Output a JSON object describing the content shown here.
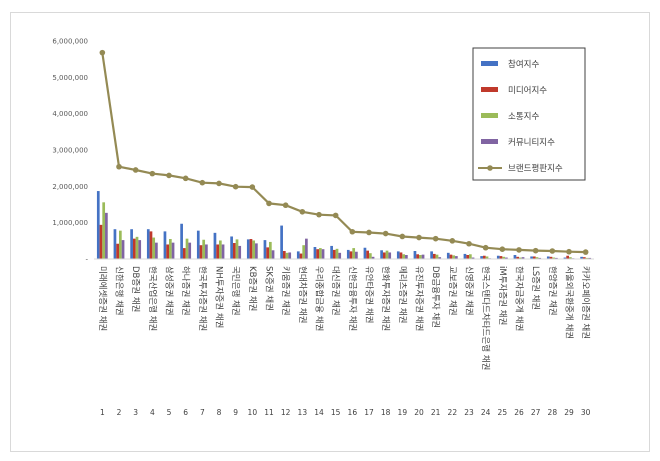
{
  "chart_data": {
    "type": "bar",
    "title": "",
    "xlabel": "",
    "ylabel": "",
    "ylim": [
      0,
      6000000
    ],
    "yticks": [
      "-",
      "1,000,000",
      "2,000,000",
      "3,000,000",
      "4,000,000",
      "5,000,000",
      "6,000,000"
    ],
    "grid": false,
    "legend_position": "top-right",
    "ranks": [
      "1",
      "2",
      "3",
      "4",
      "5",
      "6",
      "7",
      "8",
      "9",
      "10",
      "11",
      "12",
      "13",
      "14",
      "15",
      "16",
      "17",
      "18",
      "19",
      "20",
      "21",
      "22",
      "23",
      "24",
      "25",
      "26",
      "27",
      "28",
      "29",
      "30"
    ],
    "categories": [
      "미래에셋증권 채권",
      "신한은행 채권",
      "DB증권 채권",
      "한국산업은행 채권",
      "삼성증권 채권",
      "하나증권 채권",
      "한국투자증권 채권",
      "NH투자증권 채권",
      "국민은행 채권",
      "KB증권 채권",
      "SK증권 채권",
      "키움증권 채권",
      "현대차증권 채권",
      "우리종합금융 채권",
      "대신증권 채권",
      "신한금융투자 채권",
      "유안타증권 채권",
      "한화투자증권 채권",
      "메리츠증권 채권",
      "유진투자증권 채권",
      "DB금융투자 채권",
      "교보증권 채권",
      "신영증권 채권",
      "한국스탠다드차타드은행 채권",
      "iM투자증권 채권",
      "한국자금중개 채권",
      "LS증권 채권",
      "한양증권 채권",
      "서울외국환중개 채권",
      "카카오페이증권 채권"
    ],
    "series": [
      {
        "name": "참여지수",
        "color": "#4472c4",
        "kind": "bar",
        "values": [
          1870000,
          820000,
          820000,
          820000,
          760000,
          970000,
          780000,
          720000,
          620000,
          540000,
          520000,
          920000,
          210000,
          330000,
          360000,
          250000,
          310000,
          240000,
          210000,
          220000,
          210000,
          170000,
          140000,
          80000,
          90000,
          110000,
          70000,
          70000,
          40000,
          60000
        ]
      },
      {
        "name": "미디어지수",
        "color": "#c0392b",
        "kind": "bar",
        "values": [
          940000,
          420000,
          560000,
          760000,
          400000,
          300000,
          380000,
          400000,
          440000,
          550000,
          320000,
          220000,
          150000,
          270000,
          250000,
          210000,
          230000,
          180000,
          180000,
          130000,
          140000,
          120000,
          110000,
          90000,
          80000,
          60000,
          70000,
          60000,
          90000,
          50000
        ]
      },
      {
        "name": "소통지수",
        "color": "#9bbb59",
        "kind": "bar",
        "values": [
          1560000,
          780000,
          610000,
          590000,
          550000,
          560000,
          530000,
          510000,
          540000,
          510000,
          470000,
          170000,
          380000,
          300000,
          280000,
          300000,
          160000,
          230000,
          130000,
          110000,
          120000,
          100000,
          130000,
          70000,
          60000,
          40000,
          50000,
          40000,
          50000,
          30000
        ]
      },
      {
        "name": "커뮤니티지수",
        "color": "#8064a2",
        "kind": "bar",
        "values": [
          1270000,
          520000,
          520000,
          450000,
          450000,
          450000,
          400000,
          400000,
          360000,
          430000,
          240000,
          180000,
          560000,
          270000,
          170000,
          200000,
          60000,
          180000,
          110000,
          120000,
          50000,
          80000,
          40000,
          20000,
          40000,
          50000,
          30000,
          30000,
          20000,
          30000
        ]
      },
      {
        "name": "브랜드평판지수",
        "color": "#948a54",
        "kind": "line",
        "values": [
          5680000,
          2540000,
          2450000,
          2350000,
          2300000,
          2220000,
          2100000,
          2080000,
          1990000,
          1980000,
          1530000,
          1480000,
          1300000,
          1220000,
          1200000,
          750000,
          730000,
          700000,
          620000,
          590000,
          560000,
          500000,
          420000,
          310000,
          270000,
          250000,
          230000,
          220000,
          200000,
          190000
        ]
      }
    ]
  }
}
